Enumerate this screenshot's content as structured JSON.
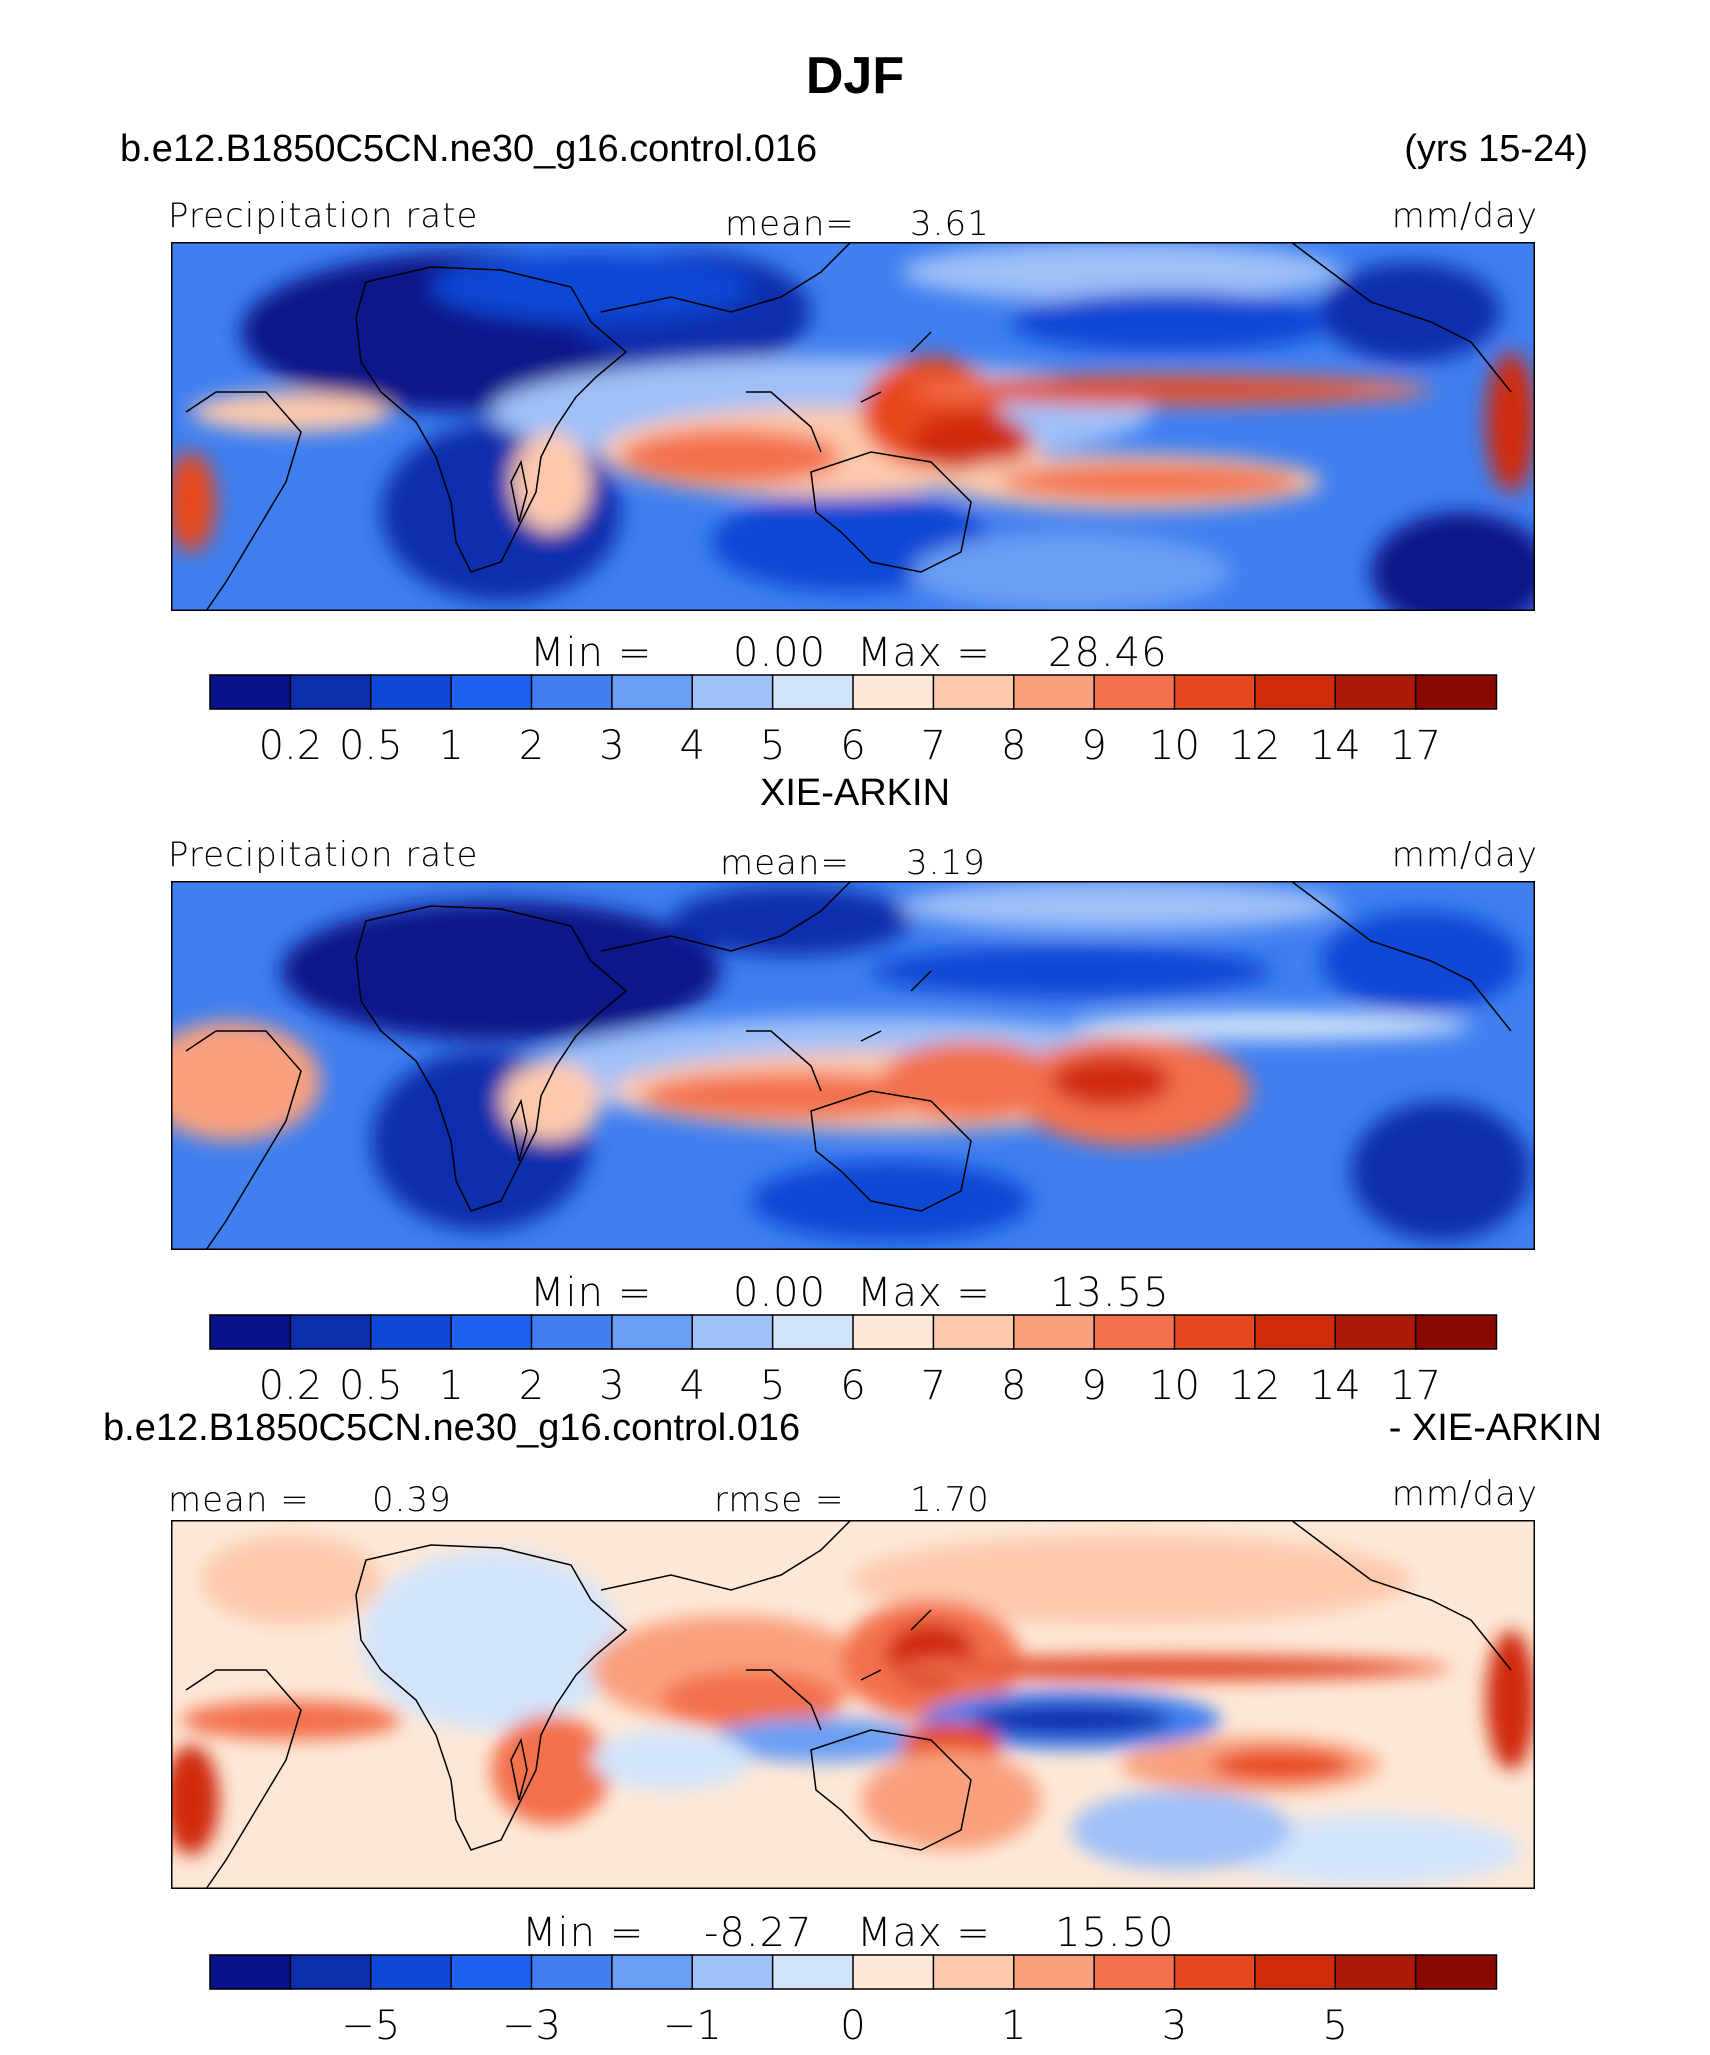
{
  "title": "DJF",
  "panels": [
    {
      "id": "model",
      "left_title": "b.e12.B1850C5CN.ne30_g16.control.016",
      "right_title": "(yrs 15-24)",
      "variable_label": "Precipitation rate",
      "stat_label": "mean=",
      "stat_value": "3.61",
      "units": "mm/day",
      "min_label": "Min  =",
      "min_value": "0.00",
      "max_label": "Max  =",
      "max_value": "28.46"
    },
    {
      "id": "obs",
      "center_title": "XIE-ARKIN",
      "variable_label": "Precipitation rate",
      "stat_label": "mean=",
      "stat_value": "3.19",
      "units": "mm/day",
      "min_label": "Min  =",
      "min_value": "0.00",
      "max_label": "Max  =",
      "max_value": "13.55"
    },
    {
      "id": "diff",
      "left_title": "b.e12.B1850C5CN.ne30_g16.control.016",
      "right_title": "- XIE-ARKIN",
      "stat_label": "mean  =",
      "stat_value": "0.39",
      "rmse_label": "rmse  =",
      "rmse_value": "1.70",
      "units": "mm/day",
      "min_label": "Min  =",
      "min_value": "-8.27",
      "max_label": "Max  =",
      "max_value": "15.50"
    }
  ],
  "colorbars": {
    "colors": [
      "#08138a",
      "#0b2fad",
      "#0d47d5",
      "#1f60ee",
      "#3f7ff0",
      "#6b9ef4",
      "#9fc0f8",
      "#d2e4fb",
      "#fde8d7",
      "#fdc9ad",
      "#f9a07e",
      "#f3714d",
      "#e8481f",
      "#d02b0b",
      "#ab1a07",
      "#8a0a03"
    ],
    "precip_ticks": [
      "0.2",
      "0.5",
      "1",
      "2",
      "3",
      "4",
      "5",
      "6",
      "7",
      "8",
      "9",
      "10",
      "12",
      "14",
      "17"
    ],
    "diff_ticks": [
      "−5",
      "−3",
      "−1",
      "0",
      "1",
      "3",
      "5"
    ]
  },
  "chart_data": [
    {
      "type": "heatmap",
      "title": "b.e12.B1850C5CN.ne30_g16.control.016",
      "subtitle": "(yrs 15-24)",
      "variable": "Precipitation rate",
      "units": "mm/day",
      "season": "DJF",
      "mean": 3.61,
      "min": 0.0,
      "max": 28.46,
      "contour_levels": [
        0.2,
        0.5,
        1,
        2,
        3,
        4,
        5,
        6,
        7,
        8,
        9,
        10,
        12,
        14,
        17
      ]
    },
    {
      "type": "heatmap",
      "title": "XIE-ARKIN",
      "variable": "Precipitation rate",
      "units": "mm/day",
      "season": "DJF",
      "mean": 3.19,
      "min": 0.0,
      "max": 13.55,
      "contour_levels": [
        0.2,
        0.5,
        1,
        2,
        3,
        4,
        5,
        6,
        7,
        8,
        9,
        10,
        12,
        14,
        17
      ]
    },
    {
      "type": "heatmap",
      "title": "b.e12.B1850C5CN.ne30_g16.control.016",
      "subtitle": "- XIE-ARKIN",
      "units": "mm/day",
      "season": "DJF",
      "mean": 0.39,
      "rmse": 1.7,
      "min": -8.27,
      "max": 15.5,
      "colorbar_tick_labels": [
        -5,
        -3,
        -1,
        0,
        1,
        3,
        5
      ]
    }
  ]
}
